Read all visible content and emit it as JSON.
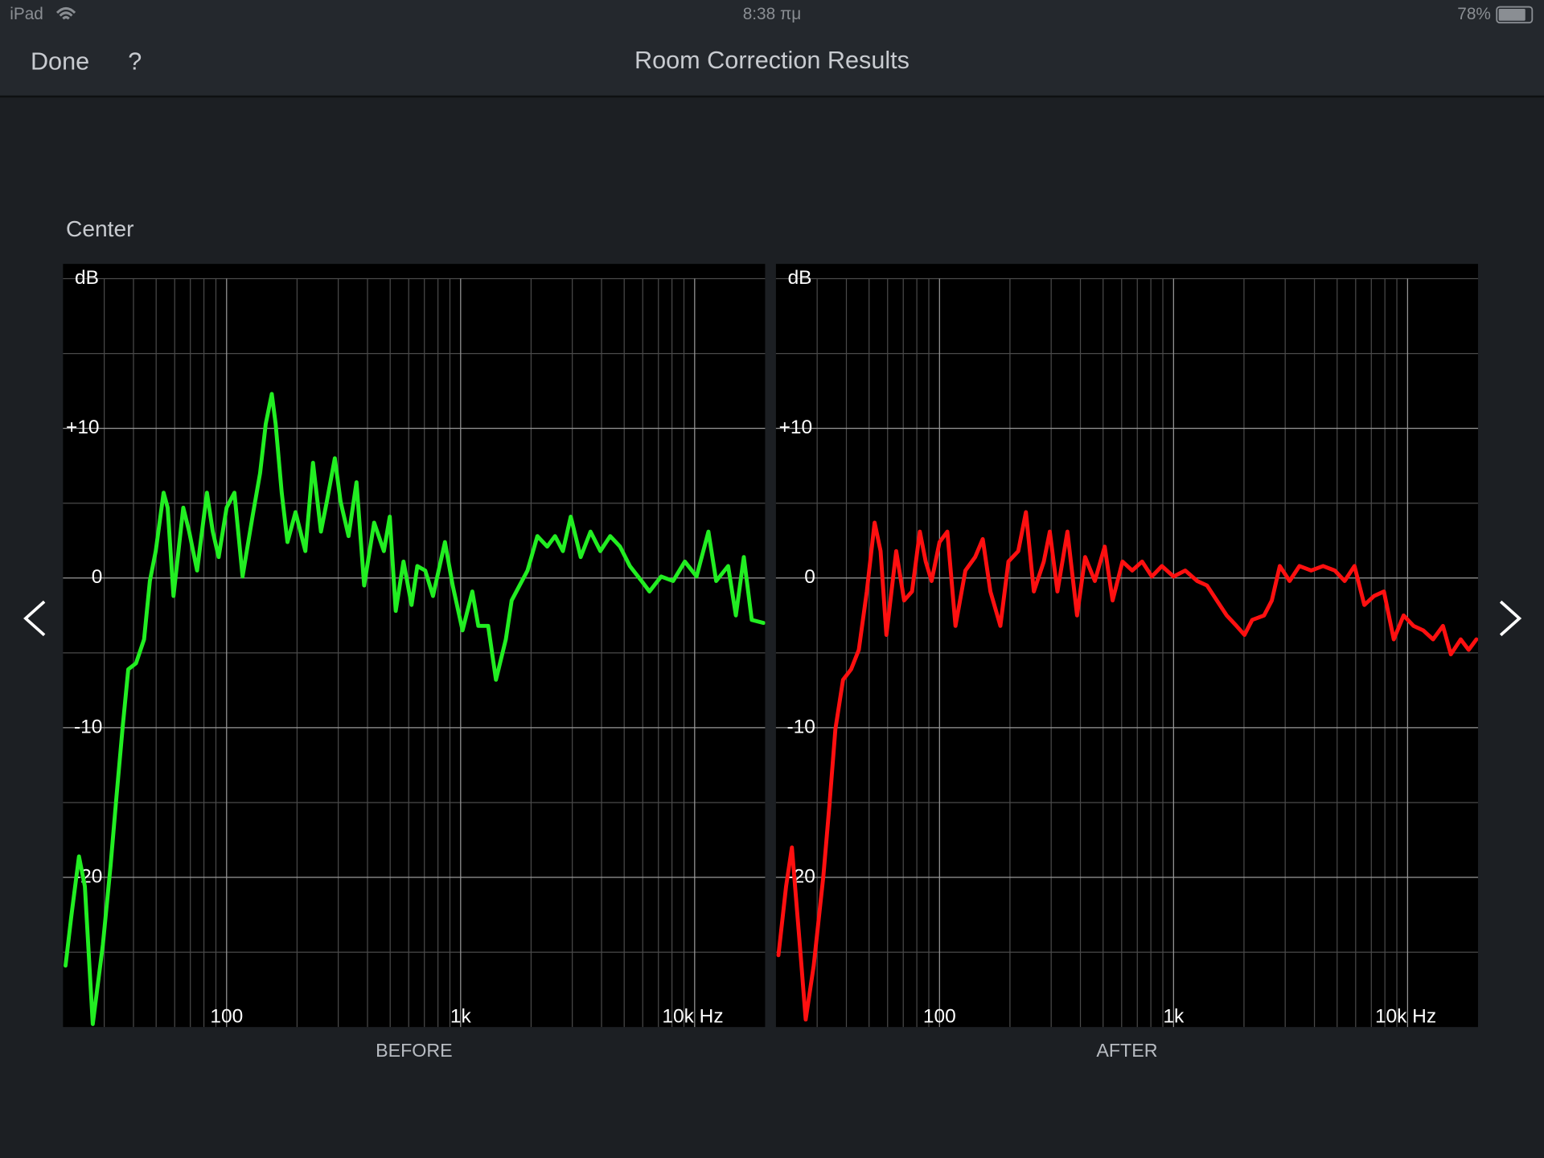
{
  "status_bar": {
    "device": "iPad",
    "time": "8:38 πμ",
    "battery": "78%"
  },
  "nav": {
    "done": "Done",
    "help": "?",
    "title": "Room Correction Results"
  },
  "section": "Center",
  "chart_data": [
    {
      "type": "line",
      "xlabel": "BEFORE",
      "ylabel": "dB",
      "xscale": "log",
      "grid": true,
      "color": "#22ee22",
      "xlim": [
        20,
        20000
      ],
      "ylim": [
        -30,
        20
      ],
      "xticks": [
        {
          "value": 100,
          "label": "100"
        },
        {
          "value": 1000,
          "label": "1k"
        },
        {
          "value": 10000,
          "label": "10k Hz"
        }
      ],
      "yticks": [
        {
          "value": 10,
          "label": "+10"
        },
        0,
        -10,
        -20
      ],
      "xgrid": [
        30,
        40,
        50,
        60,
        70,
        80,
        90,
        200,
        300,
        400,
        500,
        600,
        700,
        800,
        900,
        2000,
        3000,
        4000,
        5000,
        6000,
        7000,
        8000,
        9000
      ],
      "ygrid": [
        -25,
        -15,
        -5,
        5,
        15,
        20
      ],
      "x": [
        20.5,
        21.7,
        23.4,
        24.8,
        26.8,
        29.6,
        31.9,
        33.8,
        35.9,
        38,
        41,
        44.4,
        47,
        49.8,
        53.8,
        56,
        59.3,
        65.3,
        69.2,
        74.8,
        82.4,
        87.3,
        92.5,
        100,
        108,
        117,
        129,
        139,
        147,
        156,
        162,
        172,
        182,
        197,
        217,
        234,
        253,
        268,
        290,
        307,
        332,
        359,
        387,
        427,
        470,
        498,
        528,
        570,
        617,
        653,
        706,
        762,
        857,
        925,
        1019,
        1122,
        1190,
        1311,
        1416,
        1560,
        1652,
        1786,
        1931,
        2128,
        2344,
        2531,
        2735,
        2955,
        3258,
        3589,
        3954,
        4356,
        4798,
        5286,
        5932,
        6412,
        7194,
        8087,
        9080,
        10190,
        11450,
        12360,
        13900,
        15000,
        16220,
        17540,
        19680
      ],
      "values": [
        -25.9,
        -22.6,
        -18.6,
        -20.6,
        -29.8,
        -24.5,
        -19.3,
        -14.7,
        -10.1,
        -6.1,
        -5.7,
        -4.1,
        -0.2,
        1.8,
        5.7,
        4.7,
        -1.2,
        4.7,
        3.1,
        0.5,
        5.7,
        3.1,
        1.4,
        4.7,
        5.7,
        0.1,
        4.1,
        7,
        10.3,
        12.3,
        10.3,
        5.7,
        2.4,
        4.4,
        1.8,
        7.7,
        3.1,
        5.1,
        8,
        5.1,
        2.8,
        6.4,
        -0.5,
        3.7,
        1.8,
        4.1,
        -2.2,
        1.1,
        -1.8,
        0.8,
        0.5,
        -1.2,
        2.4,
        -0.5,
        -3.5,
        -0.9,
        -3.2,
        -3.2,
        -6.8,
        -4.1,
        -1.5,
        -0.5,
        0.5,
        2.8,
        2.1,
        2.8,
        1.8,
        4.1,
        1.4,
        3.1,
        1.8,
        2.8,
        2.1,
        0.8,
        -0.2,
        -0.9,
        0.1,
        -0.2,
        1.1,
        0.1,
        3.1,
        -0.2,
        0.8,
        -2.5,
        1.4,
        -2.8,
        -3
      ]
    },
    {
      "type": "line",
      "xlabel": "AFTER",
      "ylabel": "dB",
      "xscale": "log",
      "grid": true,
      "color": "#ff1010",
      "xlim": [
        20,
        20000
      ],
      "ylim": [
        -30,
        20
      ],
      "xticks": [
        {
          "value": 100,
          "label": "100"
        },
        {
          "value": 1000,
          "label": "1k"
        },
        {
          "value": 10000,
          "label": "10k Hz"
        }
      ],
      "yticks": [
        {
          "value": 10,
          "label": "+10"
        },
        0,
        -10,
        -20
      ],
      "xgrid": [
        30,
        40,
        50,
        60,
        70,
        80,
        90,
        200,
        300,
        400,
        500,
        600,
        700,
        800,
        900,
        2000,
        3000,
        4000,
        5000,
        6000,
        7000,
        8000,
        9000
      ],
      "ygrid": [
        -25,
        -15,
        -5,
        5,
        15,
        20
      ],
      "x": [
        20.5,
        22.1,
        23.4,
        25.3,
        26.8,
        29,
        31.9,
        33.8,
        35.9,
        38.7,
        41.9,
        45.2,
        48.9,
        52.8,
        56,
        59.3,
        65.3,
        70.6,
        76.3,
        82.4,
        87.3,
        92.5,
        100,
        108,
        117,
        129,
        142,
        153,
        165,
        182,
        197,
        217,
        234,
        253,
        279,
        296,
        319,
        352,
        387,
        419,
        461,
        508,
        549,
        605,
        666,
        734,
        808,
        891,
        1000,
        1122,
        1262,
        1390,
        1531,
        1687,
        1858,
        2009,
        2168,
        2437,
        2630,
        2844,
        3133,
        3451,
        3873,
        4356,
        4887,
        5383,
        5932,
        6535,
        7194,
        7925,
        8730,
        9616,
        10600,
        11670,
        12850,
        14160,
        15310,
        16870,
        18240,
        19680
      ],
      "values": [
        -25.2,
        -20.6,
        -18,
        -24.5,
        -29.5,
        -25.9,
        -19.9,
        -15.3,
        -10.1,
        -6.8,
        -6.1,
        -4.8,
        -0.9,
        3.7,
        1.8,
        -3.8,
        1.8,
        -1.5,
        -0.9,
        3.1,
        1.1,
        -0.2,
        2.4,
        3.1,
        -3.2,
        0.5,
        1.4,
        2.6,
        -0.9,
        -3.2,
        1.1,
        1.8,
        4.4,
        -0.9,
        1.1,
        3.1,
        -0.9,
        3.1,
        -2.5,
        1.4,
        -0.2,
        2.1,
        -1.5,
        1.1,
        0.5,
        1.1,
        0.1,
        0.8,
        0.1,
        0.5,
        -0.2,
        -0.5,
        -1.5,
        -2.5,
        -3.2,
        -3.8,
        -2.8,
        -2.5,
        -1.5,
        0.8,
        -0.2,
        0.8,
        0.5,
        0.8,
        0.5,
        -0.2,
        0.8,
        -1.8,
        -1.2,
        -0.9,
        -4.1,
        -2.5,
        -3.2,
        -3.5,
        -4.1,
        -3.2,
        -5.1,
        -4.1,
        -4.8,
        -4.1
      ]
    }
  ]
}
